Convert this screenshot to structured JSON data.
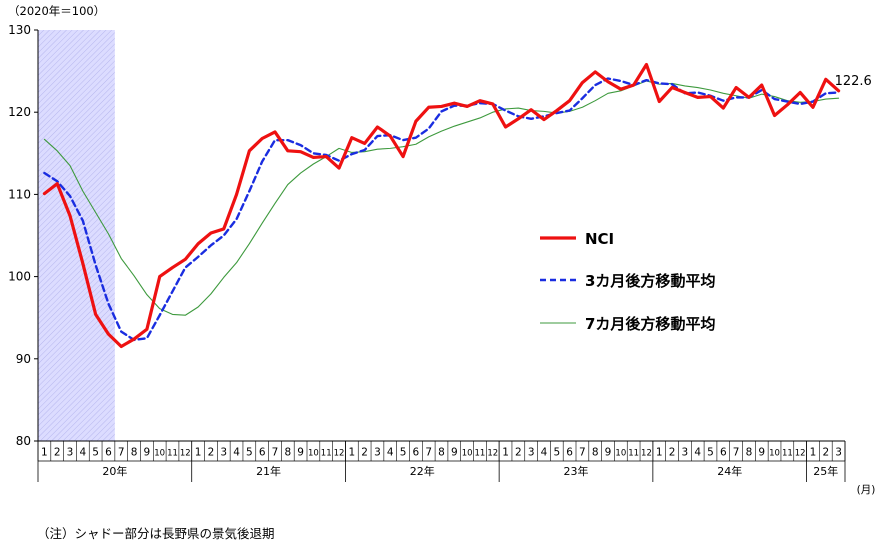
{
  "chart_data": {
    "type": "line",
    "ylabel": "（2020年＝100）",
    "xlabel": "(月)",
    "ylim": [
      80,
      130
    ],
    "yticks": [
      80,
      90,
      100,
      110,
      120,
      130
    ],
    "grid": false,
    "legend_position": "right",
    "shaded_region": {
      "from": "2020-01",
      "to": "2020-06",
      "color": "#dcdcff"
    },
    "month_labels": [
      "1",
      "2",
      "3",
      "4",
      "5",
      "6",
      "7",
      "8",
      "9",
      "10",
      "11",
      "12",
      "1",
      "2",
      "3",
      "4",
      "5",
      "6",
      "7",
      "8",
      "9",
      "10",
      "11",
      "12",
      "1",
      "2",
      "3",
      "4",
      "5",
      "6",
      "7",
      "8",
      "9",
      "10",
      "11",
      "12",
      "1",
      "2",
      "3",
      "4",
      "5",
      "6",
      "7",
      "8",
      "9",
      "10",
      "11",
      "12",
      "1",
      "2",
      "3",
      "4",
      "5",
      "6",
      "7",
      "8",
      "9",
      "10",
      "11",
      "12",
      "1",
      "2",
      "3"
    ],
    "years": [
      {
        "label": "20年",
        "months": 12
      },
      {
        "label": "21年",
        "months": 12
      },
      {
        "label": "22年",
        "months": 12
      },
      {
        "label": "23年",
        "months": 12
      },
      {
        "label": "24年",
        "months": 12
      },
      {
        "label": "25年",
        "months": 3
      }
    ],
    "series": [
      {
        "name": "NCI",
        "color": "#ee1111",
        "style": "solid-thick",
        "values": [
          110.1,
          111.3,
          107.4,
          101.6,
          95.4,
          93.0,
          91.5,
          92.4,
          93.6,
          100.0,
          101.1,
          102.1,
          104.0,
          105.3,
          105.8,
          110.0,
          115.3,
          116.8,
          117.6,
          115.3,
          115.2,
          114.5,
          114.6,
          113.2,
          116.9,
          116.2,
          118.2,
          117.1,
          114.6,
          118.9,
          120.6,
          120.7,
          121.1,
          120.7,
          121.4,
          121.0,
          118.2,
          119.2,
          120.3,
          119.1,
          120.2,
          121.4,
          123.6,
          124.9,
          123.7,
          122.8,
          123.3,
          125.8,
          121.3,
          123.0,
          122.4,
          121.8,
          121.9,
          120.5,
          123.0,
          121.8,
          123.3,
          119.6,
          120.9,
          122.4,
          120.6,
          124.0,
          122.6
        ]
      },
      {
        "name": "3カ月後方移動平均",
        "color": "#1a2de0",
        "style": "dashed",
        "values": [
          112.6,
          111.6,
          109.8,
          106.8,
          101.4,
          96.7,
          93.3,
          92.3,
          92.5,
          95.3,
          98.2,
          101.1,
          102.4,
          103.8,
          105.0,
          107.0,
          110.4,
          114.0,
          116.6,
          116.6,
          116.0,
          115.0,
          114.8,
          114.1,
          114.9,
          115.4,
          117.1,
          117.2,
          116.6,
          116.9,
          118.0,
          120.1,
          120.8,
          120.8,
          121.1,
          121.0,
          120.2,
          119.5,
          119.2,
          119.5,
          119.9,
          120.2,
          121.7,
          123.3,
          124.1,
          123.8,
          123.3,
          123.9,
          123.5,
          123.4,
          122.3,
          122.4,
          122.0,
          121.4,
          121.8,
          121.8,
          122.7,
          121.6,
          121.3,
          121.0,
          121.3,
          122.3,
          122.4
        ]
      },
      {
        "name": "7カ月後方移動平均",
        "color": "#3e9a3e",
        "style": "solid-thin",
        "values": [
          116.7,
          115.3,
          113.5,
          110.4,
          107.8,
          105.2,
          102.2,
          100.1,
          97.8,
          96.1,
          95.4,
          95.3,
          96.3,
          97.9,
          99.9,
          101.7,
          104.0,
          106.5,
          108.9,
          111.2,
          112.6,
          113.7,
          114.6,
          115.6,
          115.1,
          115.2,
          115.5,
          115.6,
          115.8,
          116.1,
          117.0,
          117.7,
          118.3,
          118.8,
          119.3,
          120.0,
          120.4,
          120.5,
          120.2,
          120.1,
          119.9,
          120.1,
          120.6,
          121.4,
          122.3,
          122.6,
          123.2,
          123.8,
          123.4,
          123.5,
          123.2,
          123.0,
          122.7,
          122.3,
          122.0,
          121.7,
          122.2,
          121.9,
          121.4,
          121.2,
          121.3,
          121.6,
          121.7
        ]
      }
    ],
    "annotations": [
      {
        "text": "122.6",
        "series": "NCI",
        "point": "last"
      }
    ]
  },
  "footnote": "（注）シャドー部分は長野県の景気後退期"
}
